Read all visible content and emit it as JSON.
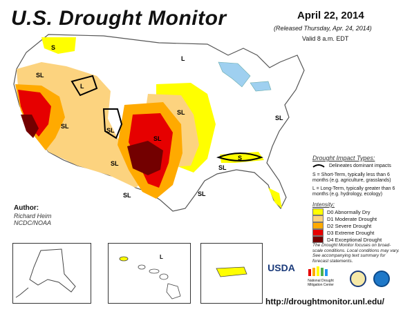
{
  "header": {
    "title": "U.S. Drought Monitor",
    "date": "April 22, 2014",
    "released": "(Released Thursday, Apr. 24, 2014)",
    "valid": "Valid 8 a.m. EDT"
  },
  "author": {
    "heading": "Author:",
    "name": "Richard Heim",
    "org": "NCDC/NOAA"
  },
  "impact_legend": {
    "title": "Drought Impact Types:",
    "line_label": "Delineates dominant impacts",
    "short_term": "S = Short-Term, typically less than 6 months (e.g. agriculture, grasslands)",
    "long_term": "L = Long-Term, typically greater than 6 months (e.g. hydrology, ecology)"
  },
  "intensity_legend": {
    "title": "Intensity:",
    "items": [
      {
        "label": "D0 Abnormally Dry",
        "color": "#ffff00"
      },
      {
        "label": "D1 Moderate Drought",
        "color": "#fcd37f"
      },
      {
        "label": "D2 Severe Drought",
        "color": "#ffaa00"
      },
      {
        "label": "D3 Extreme Drought",
        "color": "#e60000"
      },
      {
        "label": "D4 Exceptional Drought",
        "color": "#730000"
      }
    ]
  },
  "note": "The Drought Monitor focuses on broad-scale conditions. Local conditions may vary. See accompanying text summary for forecast statements.",
  "map_labels": {
    "s": "S",
    "l": "L",
    "sl": "SL"
  },
  "logos": {
    "usda": "USDA",
    "ndmc": "National Drought Mitigation Center"
  },
  "url": "http://droughtmonitor.unl.edu/"
}
